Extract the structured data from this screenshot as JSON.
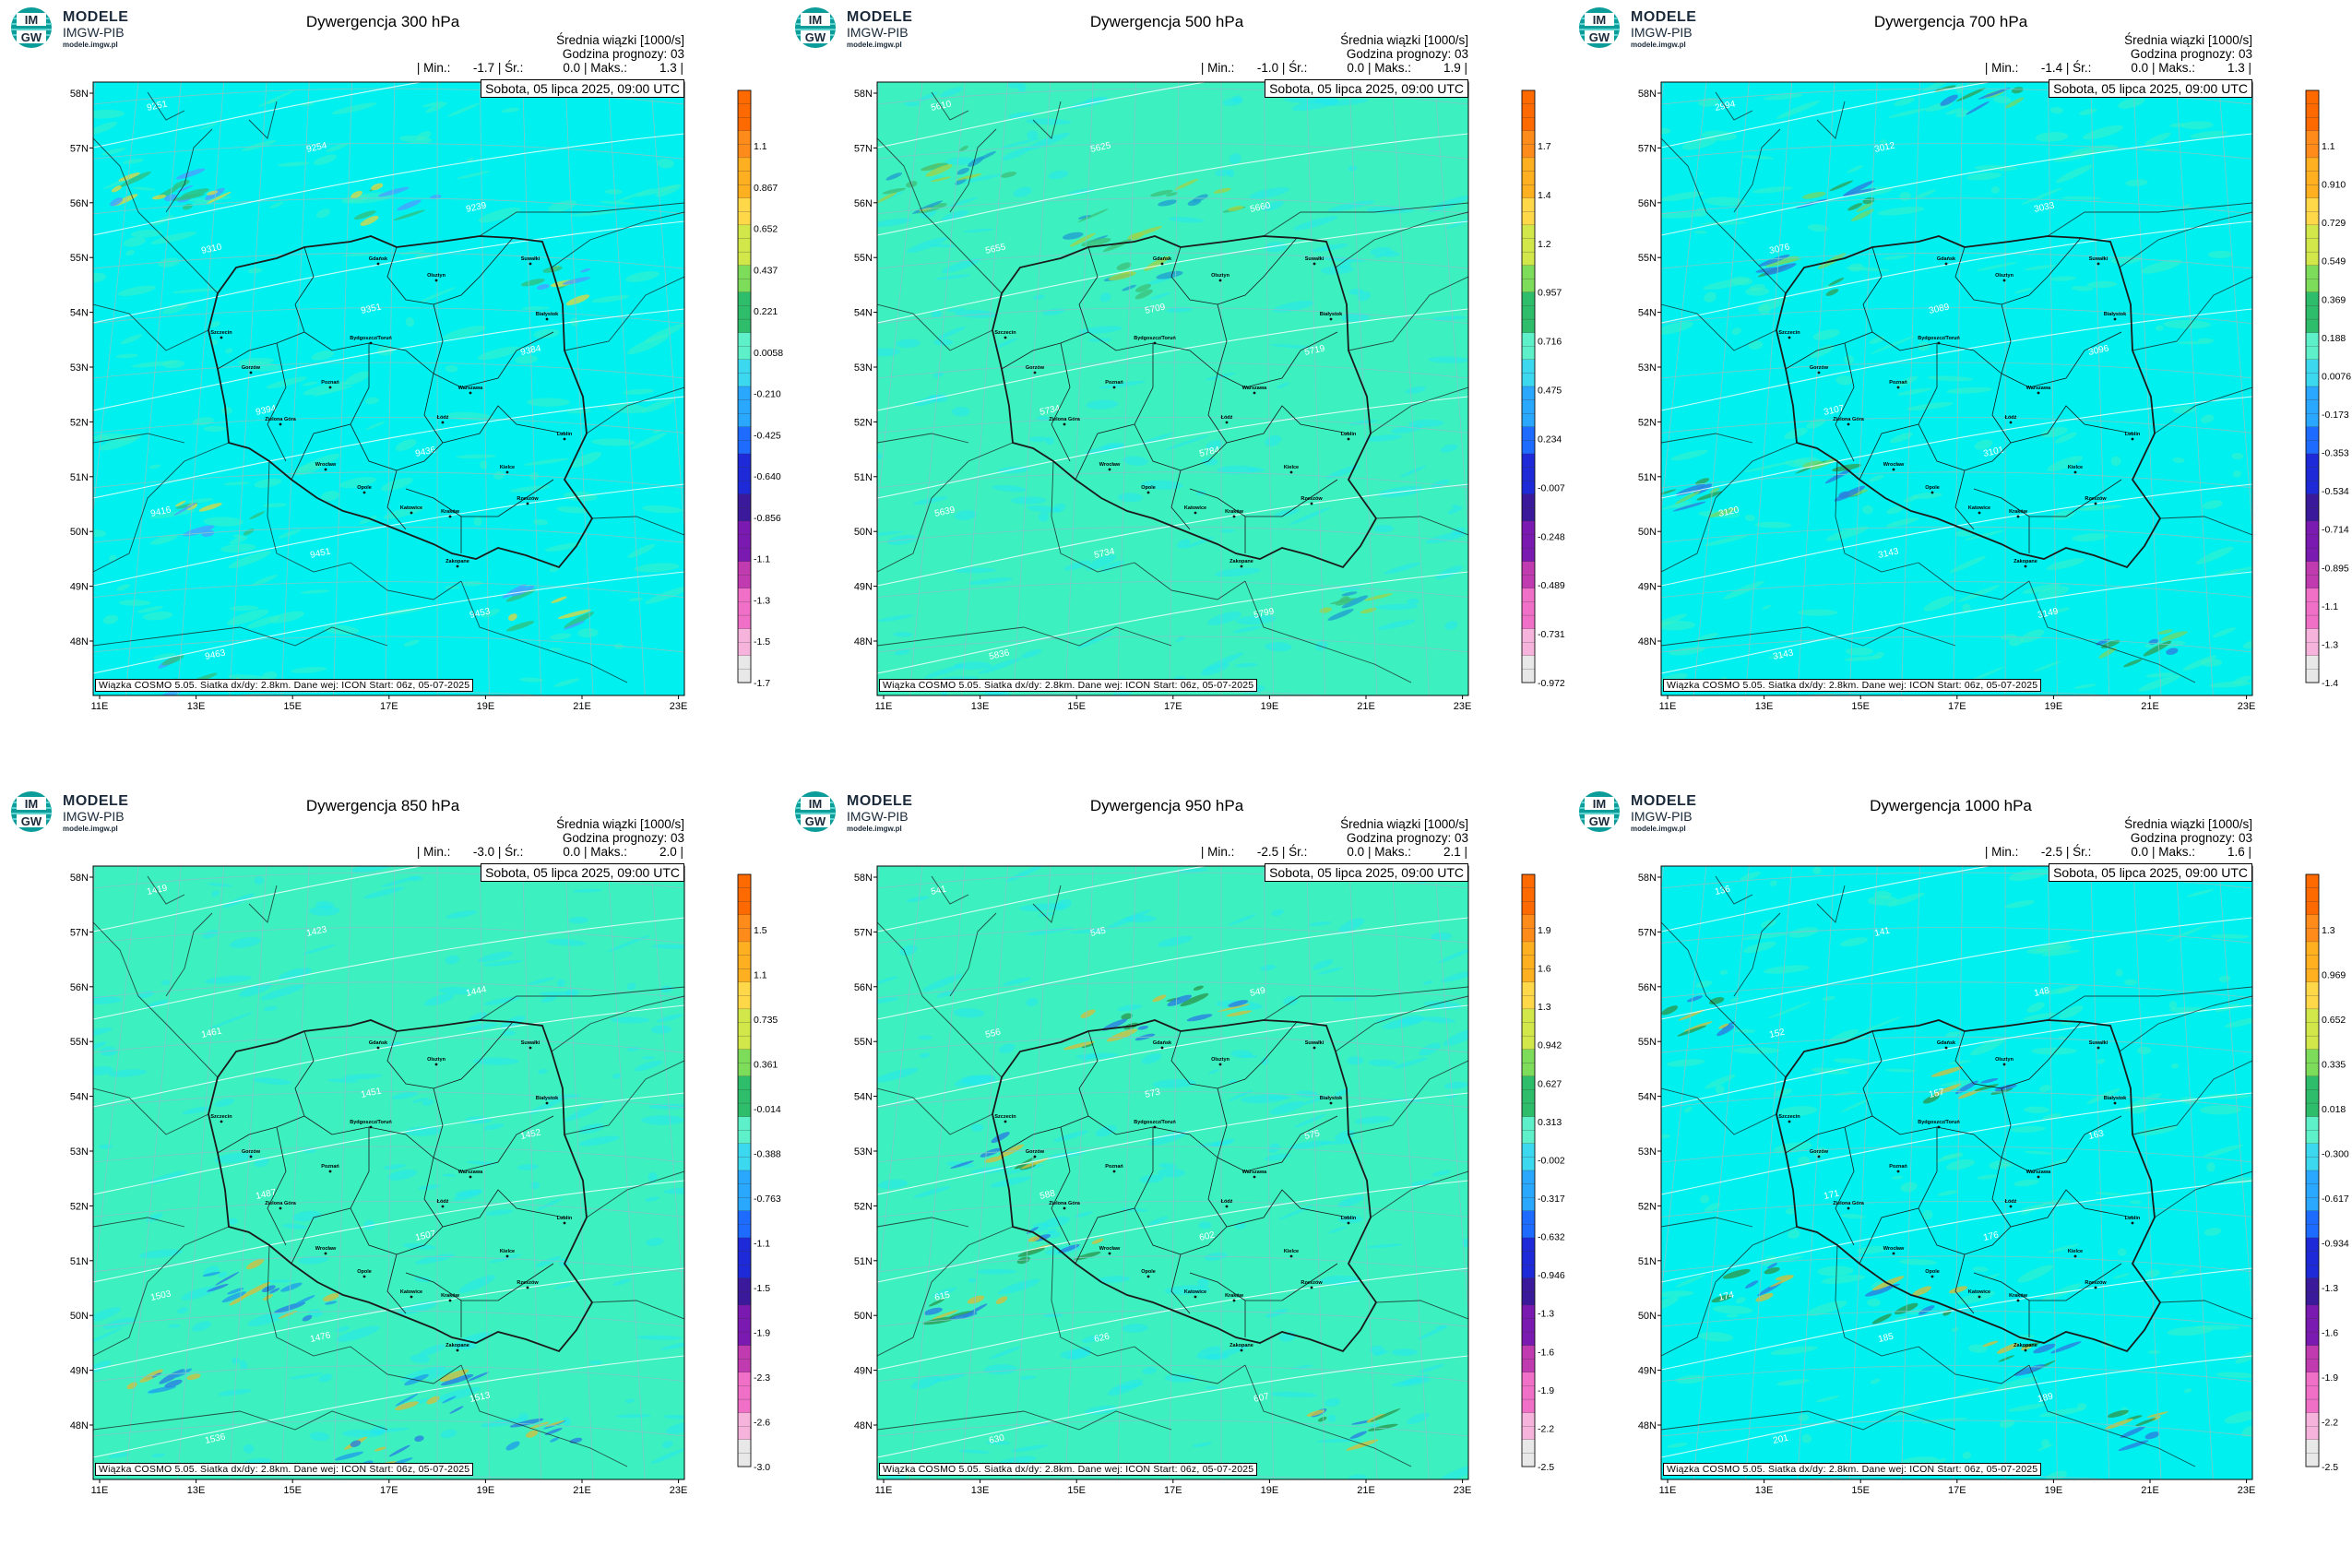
{
  "brand": {
    "line1": "MODELE",
    "line2": "IMGW-PIB",
    "url": "modele.imgw.pl",
    "mark_top": "IM",
    "mark_bottom": "GW"
  },
  "common": {
    "subtitle": "Średnia wiązki [1000/s]",
    "forecast_hour": "Godzina prognozy: 03",
    "min_label": "| Min.:",
    "mean_label": "| Śr.:",
    "max_label": "| Maks.:",
    "end_bar": "|",
    "date": "Sobota, 05 lipca 2025, 09:00 UTC",
    "footer": "Wiązka COSMO 5.05. Siatka dx/dy: 2.8km. Dane wej: ICON Start: 06z, 05-07-2025",
    "lat_labels": [
      "58N",
      "57N",
      "56N",
      "55N",
      "54N",
      "53N",
      "52N",
      "51N",
      "50N",
      "49N",
      "48N"
    ],
    "lon_labels": [
      "11E",
      "13E",
      "15E",
      "17E",
      "19E",
      "21E",
      "23E"
    ],
    "cities": [
      "Gdańsk",
      "Suwałki",
      "Olsztyn",
      "Białystok",
      "Szczecin",
      "Bydgoszcz/Toruń",
      "Gorzów",
      "Poznań",
      "Warszawa",
      "Zielona Góra",
      "Łódź",
      "Lublin",
      "Wrocław",
      "Kielce",
      "Opole",
      "Rzeszów",
      "Katowice",
      "Kraków",
      "Zakopane"
    ]
  },
  "colors": {
    "cyan": "#00f0f0",
    "mint": "#3cf0c0",
    "border": "#1a1a1a",
    "grid": "#7fc8c8"
  },
  "panels": [
    {
      "title": "Dywergencja 300 hPa",
      "min": "-1.7",
      "mean": "0.0",
      "max": "1.3",
      "field_base": "cyan",
      "colorbar": [
        "1.1",
        "0.867",
        "0.652",
        "0.437",
        "0.221",
        "0.0058",
        "-0.210",
        "-0.425",
        "-0.640",
        "-0.856",
        "-1.1",
        "-1.3",
        "-1.5",
        "-1.7"
      ],
      "contours": [
        "9251",
        "9254",
        "9239",
        "9310",
        "9351",
        "9384",
        "9394",
        "9436",
        "9416",
        "9451",
        "9453",
        "9463",
        "9515",
        "9530"
      ]
    },
    {
      "title": "Dywergencja 500 hPa",
      "min": "-1.0",
      "mean": "0.0",
      "max": "1.9",
      "field_base": "mint",
      "colorbar": [
        "1.7",
        "1.4",
        "1.2",
        "0.957",
        "0.716",
        "0.475",
        "0.234",
        "-0.007",
        "-0.248",
        "-0.489",
        "-0.731",
        "-0.972"
      ],
      "contours": [
        "5610",
        "5625",
        "5660",
        "5655",
        "5709",
        "5719",
        "5734",
        "5784",
        "5639",
        "5734",
        "5799",
        "5836"
      ]
    },
    {
      "title": "Dywergencja 700 hPa",
      "min": "-1.4",
      "mean": "0.0",
      "max": "1.3",
      "field_base": "cyan",
      "colorbar": [
        "1.1",
        "0.910",
        "0.729",
        "0.549",
        "0.369",
        "0.188",
        "0.0076",
        "-0.173",
        "-0.353",
        "-0.534",
        "-0.714",
        "-0.895",
        "-1.1",
        "-1.3",
        "-1.4"
      ],
      "contours": [
        "2994",
        "3012",
        "3033",
        "3076",
        "3089",
        "3096",
        "3107",
        "3101",
        "3120",
        "3143",
        "3149",
        "3143"
      ]
    },
    {
      "title": "Dywergencja 850 hPa",
      "min": "-3.0",
      "mean": "0.0",
      "max": "2.0",
      "field_base": "mint",
      "colorbar": [
        "1.5",
        "1.1",
        "0.735",
        "0.361",
        "-0.014",
        "-0.388",
        "-0.763",
        "-1.1",
        "-1.5",
        "-1.9",
        "-2.3",
        "-2.6",
        "-3.0"
      ],
      "contours": [
        "1419",
        "1423",
        "1444",
        "1461",
        "1451",
        "1452",
        "1487",
        "1507",
        "1503",
        "1476",
        "1513",
        "1536"
      ]
    },
    {
      "title": "Dywergencja 950 hPa",
      "min": "-2.5",
      "mean": "0.0",
      "max": "2.1",
      "field_base": "mint",
      "colorbar": [
        "1.9",
        "1.6",
        "1.3",
        "0.942",
        "0.627",
        "0.313",
        "-0.002",
        "-0.317",
        "-0.632",
        "-0.946",
        "-1.3",
        "-1.6",
        "-1.9",
        "-2.2",
        "-2.5"
      ],
      "contours": [
        "541",
        "545",
        "549",
        "556",
        "573",
        "575",
        "588",
        "602",
        "615",
        "626",
        "607",
        "630"
      ]
    },
    {
      "title": "Dywergencja 1000 hPa",
      "min": "-2.5",
      "mean": "0.0",
      "max": "1.6",
      "field_base": "cyan",
      "colorbar": [
        "1.3",
        "0.969",
        "0.652",
        "0.335",
        "0.018",
        "-0.300",
        "-0.617",
        "-0.934",
        "-1.3",
        "-1.6",
        "-1.9",
        "-2.2",
        "-2.5"
      ],
      "contours": [
        "136",
        "141",
        "148",
        "152",
        "157",
        "163",
        "171",
        "176",
        "174",
        "185",
        "189",
        "201"
      ]
    }
  ]
}
